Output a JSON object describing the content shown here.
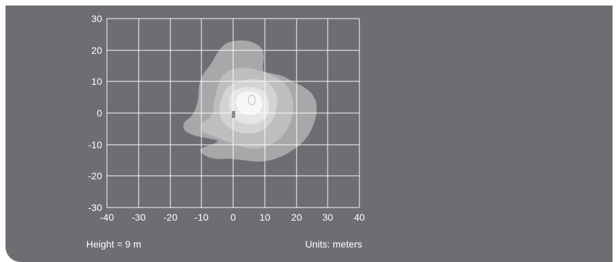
{
  "plot": {
    "y_ticks": [
      "30",
      "20",
      "10",
      "0",
      "-10",
      "-20",
      "-30"
    ],
    "x_ticks": [
      "-40",
      "-30",
      "-20",
      "-10",
      "0",
      "10",
      "20",
      "30",
      "40"
    ],
    "height_note": "Height = 9 m",
    "units_note": "Units: meters",
    "contour_colors": [
      "#a7a8aa",
      "#bdbec0",
      "#d2d3d4",
      "#e6e6e7",
      "#f7f7f7"
    ],
    "marker_color": "#8a8b8d"
  }
}
